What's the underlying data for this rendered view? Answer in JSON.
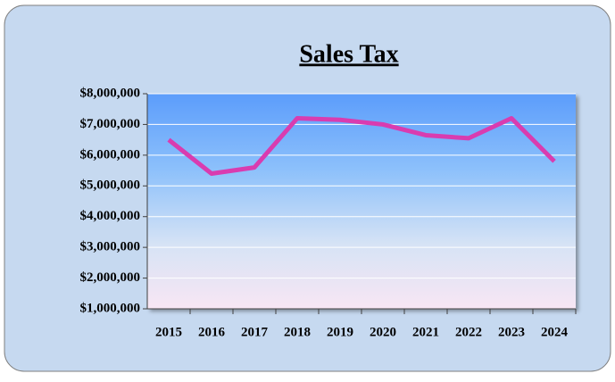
{
  "chart_data": {
    "type": "line",
    "title": "Sales Tax",
    "categories": [
      "2015",
      "2016",
      "2017",
      "2018",
      "2019",
      "2020",
      "2021",
      "2022",
      "2023",
      "2024"
    ],
    "series": [
      {
        "name": "Sales Tax",
        "color": "#d93cb0",
        "values": [
          6500000,
          5400000,
          5600000,
          7200000,
          7150000,
          7000000,
          6650000,
          6550000,
          7200000,
          5800000
        ]
      }
    ],
    "ylim": [
      1000000,
      8000000
    ],
    "yticks": [
      {
        "value": 1000000,
        "label": "$1,000,000"
      },
      {
        "value": 2000000,
        "label": "$2,000,000"
      },
      {
        "value": 3000000,
        "label": "$3,000,000"
      },
      {
        "value": 4000000,
        "label": "$4,000,000"
      },
      {
        "value": 5000000,
        "label": "$5,000,000"
      },
      {
        "value": 6000000,
        "label": "$6,000,000"
      },
      {
        "value": 7000000,
        "label": "$7,000,000"
      },
      {
        "value": 8000000,
        "label": "$8,000,000"
      }
    ],
    "grid": true
  }
}
